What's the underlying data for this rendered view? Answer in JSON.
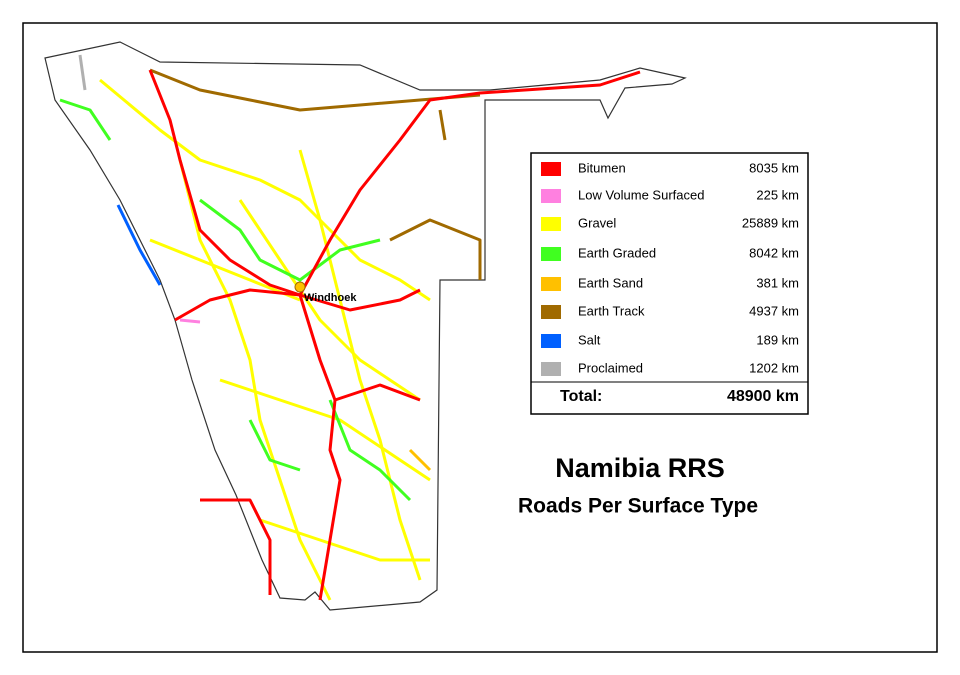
{
  "map": {
    "title": "Namibia RRS",
    "subtitle": "Roads Per Surface Type",
    "city_label": "Windhoek",
    "legend": {
      "items": [
        {
          "name": "Bitumen",
          "color": "#ff0000",
          "length": "8035 km"
        },
        {
          "name": "Low Volume Surfaced",
          "color": "#ff80e0",
          "length": "225 km"
        },
        {
          "name": "Gravel",
          "color": "#ffff00",
          "length": "25889 km"
        },
        {
          "name": "Earth Graded",
          "color": "#40ff20",
          "length": "8042 km"
        },
        {
          "name": "Earth Sand",
          "color": "#ffc000",
          "length": "381 km"
        },
        {
          "name": "Earth Track",
          "color": "#a06a00",
          "length": "4937 km"
        },
        {
          "name": "Salt",
          "color": "#0060ff",
          "length": "189 km"
        },
        {
          "name": "Proclaimed",
          "color": "#b0b0b0",
          "length": "1202 km"
        }
      ],
      "total_label": "Total:",
      "total_length": "48900 km"
    }
  }
}
